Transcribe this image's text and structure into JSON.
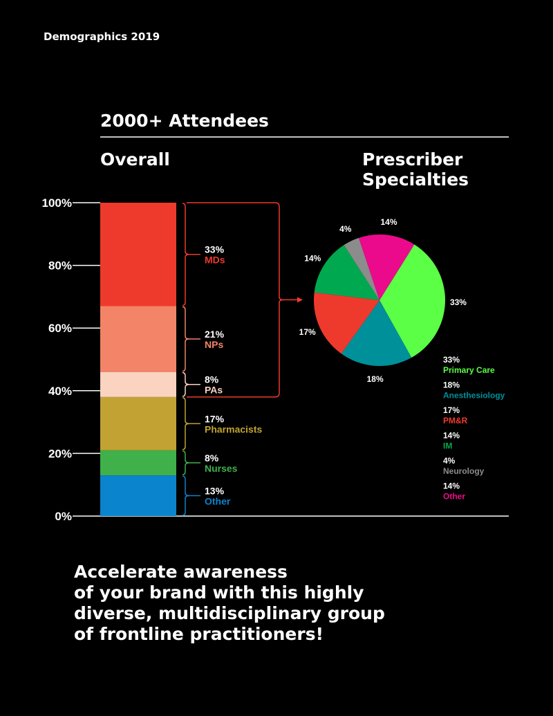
{
  "header": {
    "title": "Demographics 2019"
  },
  "headline": "2000+ Attendees",
  "tagline": [
    "Accelerate awareness",
    "of your brand with this highly",
    "diverse, multidisciplinary group",
    "of frontline practitioners!"
  ],
  "chart_data": [
    {
      "type": "bar",
      "stacked": true,
      "title": "Overall",
      "ylim": [
        0,
        100
      ],
      "yticks": [
        "0%",
        "20%",
        "40%",
        "60%",
        "80%",
        "100%"
      ],
      "series": [
        {
          "name": "Other",
          "value": 13,
          "label": "13%",
          "color": "#0a84cc"
        },
        {
          "name": "Nurses",
          "value": 8,
          "label": "8%",
          "color": "#40b04a"
        },
        {
          "name": "Pharmacists",
          "value": 17,
          "label": "17%",
          "color": "#c2a232"
        },
        {
          "name": "PAs",
          "value": 8,
          "label": "8%",
          "color": "#fad3c1"
        },
        {
          "name": "NPs",
          "value": 21,
          "label": "21%",
          "color": "#f38467"
        },
        {
          "name": "MDs",
          "value": 33,
          "label": "33%",
          "color": "#ee3a2c"
        }
      ]
    },
    {
      "type": "pie",
      "title": "Prescriber Specialties",
      "slices": [
        {
          "name": "Primary Care",
          "value": 33,
          "label": "33%",
          "color": "#5bff45"
        },
        {
          "name": "Anesthesiology",
          "value": 18,
          "label": "18%",
          "color": "#00909a"
        },
        {
          "name": "PM&R",
          "value": 17,
          "label": "17%",
          "color": "#ee3a2c"
        },
        {
          "name": "IM",
          "value": 14,
          "label": "14%",
          "color": "#00a94f"
        },
        {
          "name": "Neurology",
          "value": 4,
          "label": "4%",
          "color": "#8c8c8c"
        },
        {
          "name": "Other",
          "value": 14,
          "label": "14%",
          "color": "#ec0a8c"
        }
      ]
    }
  ]
}
